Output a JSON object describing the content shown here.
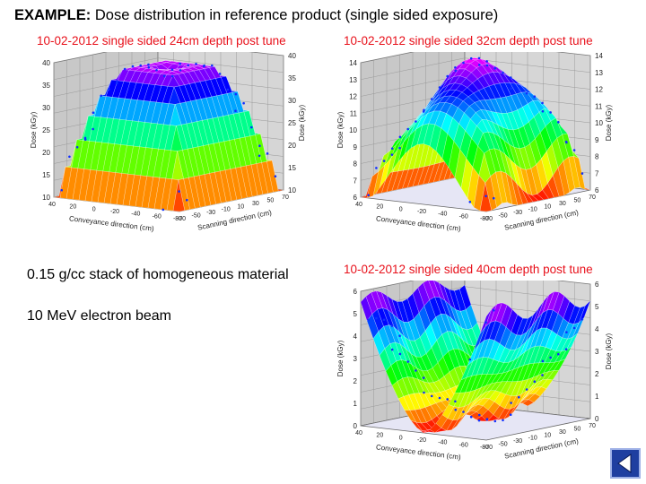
{
  "slide": {
    "title_bold": "EXAMPLE:",
    "title_rest": " Dose distribution in reference product (single sided exposure)"
  },
  "notes": {
    "line1": "0.15 g/cc stack of homogeneous material",
    "line2": "10 MeV electron beam"
  },
  "colors": {
    "plot_title": "#e8101a",
    "nav_button": "#1f3fa0"
  },
  "plots": [
    {
      "title": "10-02-2012 single sided 24cm depth post tune",
      "left_ticks": [
        "10",
        "15",
        "20",
        "25",
        "30",
        "35",
        "40"
      ],
      "left_label": "Dose (kGy)",
      "right_ticks": [
        "10",
        "15",
        "20",
        "25",
        "30",
        "35",
        "40"
      ],
      "right_label": "Dose (kGy)",
      "x_ticks": [
        "40",
        "30",
        "20",
        "10",
        "0",
        "-10",
        "-20",
        "-30",
        "-40",
        "-50",
        "-60",
        "-70",
        "-80"
      ],
      "x_label": "Conveyance direction (cm)",
      "y_ticks": [
        "-70",
        "-60",
        "-50",
        "-40",
        "-30",
        "-20",
        "-10",
        "0",
        "10",
        "20",
        "30",
        "40",
        "50",
        "60",
        "70"
      ],
      "y_label": "Scanning direction (cm)"
    },
    {
      "title": "10-02-2012 single sided 32cm depth post tune",
      "left_ticks": [
        "6",
        "7",
        "8",
        "9",
        "10",
        "11",
        "12",
        "13",
        "14"
      ],
      "left_label": "Dose (kGy)",
      "right_ticks": [
        "6",
        "7",
        "8",
        "9",
        "10",
        "11",
        "12",
        "13",
        "14"
      ],
      "right_label": "Dose (kGy)",
      "x_ticks": [
        "40",
        "30",
        "20",
        "10",
        "0",
        "-10",
        "-20",
        "-30",
        "-40",
        "-50",
        "-60",
        "-70",
        "-80"
      ],
      "x_label": "Conveyance direction (cm)",
      "y_ticks": [
        "-70",
        "-60",
        "-50",
        "-40",
        "-30",
        "-20",
        "-10",
        "0",
        "10",
        "20",
        "30",
        "40",
        "50",
        "60",
        "70"
      ],
      "y_label": "Scanning direction (cm)"
    },
    {
      "title": "10-02-2012 single sided 40cm depth post tune",
      "left_ticks": [
        "0",
        "1",
        "2",
        "3",
        "4",
        "5",
        "6"
      ],
      "left_label": "Dose (kGy)",
      "right_ticks": [
        "0",
        "1",
        "2",
        "3",
        "4",
        "5",
        "6"
      ],
      "right_label": "Dose (kGy)",
      "x_ticks": [
        "40",
        "30",
        "20",
        "10",
        "0",
        "-10",
        "-20",
        "-30",
        "-40",
        "-50",
        "-60",
        "-70",
        "-80"
      ],
      "x_label": "Conveyance direction (cm)",
      "y_ticks": [
        "-70",
        "-60",
        "-50",
        "-40",
        "-30",
        "-20",
        "-10",
        "0",
        "10",
        "20",
        "30",
        "40",
        "50",
        "60",
        "70"
      ],
      "y_label": "Scanning direction (cm)"
    }
  ]
}
